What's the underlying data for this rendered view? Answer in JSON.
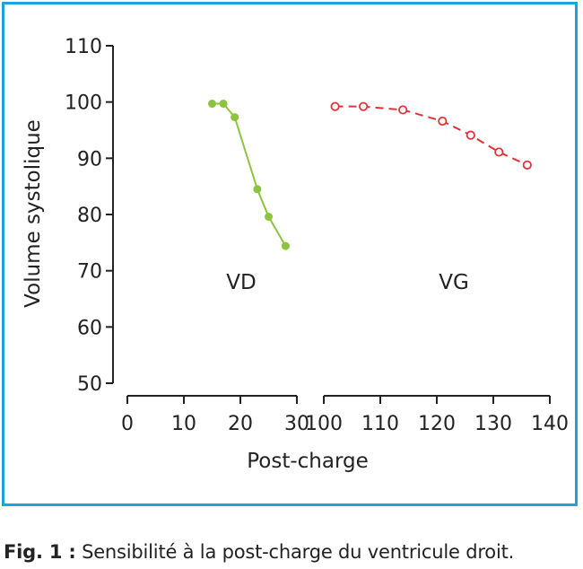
{
  "caption": {
    "label": "Fig. 1 :",
    "text": " Sensibilité à la post-charge du ventricule droit."
  },
  "colors": {
    "frame": "#1aa3dc",
    "vd": "#8dc43f",
    "vg": "#e0333a",
    "axis": "#222222"
  },
  "chart_data": {
    "type": "line",
    "ylabel": "Volume systolique",
    "xlabel": "Post-charge",
    "ylim": [
      50,
      110
    ],
    "yticks": [
      50,
      60,
      70,
      80,
      90,
      100,
      110
    ],
    "x_axis_segments": [
      {
        "xlim": [
          0,
          30
        ],
        "ticks": [
          0,
          10,
          20,
          30
        ]
      },
      {
        "xlim": [
          100,
          140
        ],
        "ticks": [
          100,
          110,
          120,
          130,
          140
        ]
      }
    ],
    "grid": false,
    "series": [
      {
        "name": "VD",
        "style": "solid, filled markers",
        "points": [
          [
            15,
            99.7
          ],
          [
            17,
            99.7
          ],
          [
            19,
            97.3
          ],
          [
            23,
            84.5
          ],
          [
            25,
            79.6
          ],
          [
            28,
            74.4
          ]
        ]
      },
      {
        "name": "VG",
        "style": "dashed, open markers",
        "points": [
          [
            102,
            99.2
          ],
          [
            107,
            99.2
          ],
          [
            114,
            98.6
          ],
          [
            121,
            96.6
          ],
          [
            126,
            94.1
          ],
          [
            131,
            91.1
          ],
          [
            136,
            88.8
          ]
        ]
      }
    ]
  }
}
